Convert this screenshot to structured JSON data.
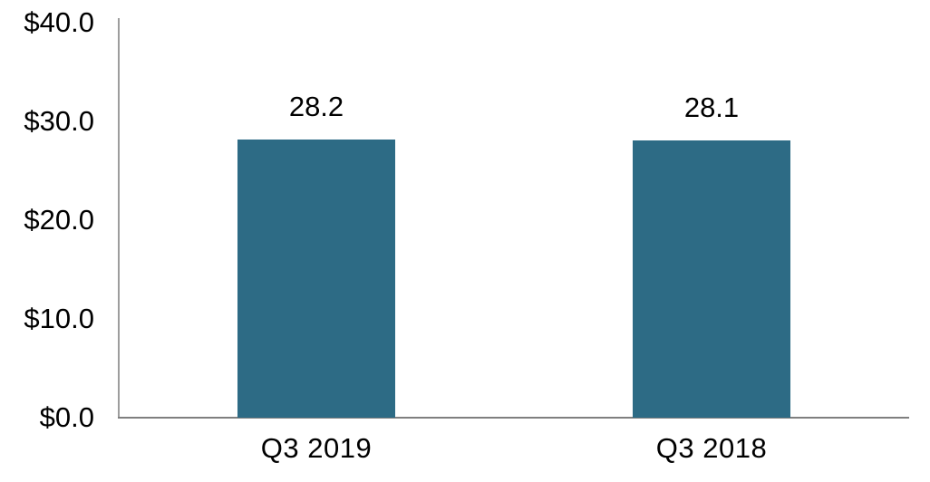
{
  "chart_data": {
    "type": "bar",
    "title": "",
    "xlabel": "",
    "ylabel": "",
    "categories": [
      "Q3 2019",
      "Q3 2018"
    ],
    "values": [
      28.2,
      28.1
    ],
    "value_labels": [
      "28.2",
      "28.1"
    ],
    "ylim": [
      0,
      40
    ],
    "y_ticks": [
      {
        "value": 40,
        "label": "$40.0"
      },
      {
        "value": 30,
        "label": "$30.0"
      },
      {
        "value": 20,
        "label": "$20.0"
      },
      {
        "value": 10,
        "label": "$10.0"
      },
      {
        "value": 0,
        "label": "$0.0"
      }
    ],
    "grid": false,
    "legend": false,
    "data_labels_shown": true,
    "colors": {
      "bar_fill": "#2d6b85",
      "y_axis_line": "#9d9d9d",
      "x_axis_line": "#7f7f7f",
      "label_text": "#000000",
      "background": "#ffffff"
    }
  }
}
